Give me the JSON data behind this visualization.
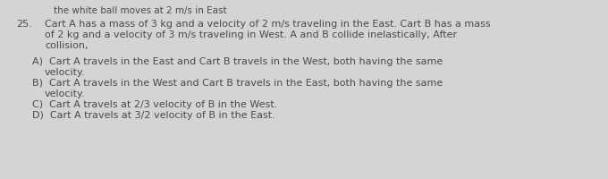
{
  "background_color": "#d4d4d4",
  "header_text": "the white ball moves at 2 m/s in East",
  "question_number": "25.",
  "question_line1": "Cart A has a mass of 3 kg and a velocity of 2 m/s traveling in the East. Cart B has a mass",
  "question_line2": "of 2 kg and a velocity of 3 m/s traveling in West. A and B collide inelastically, After",
  "question_line3": "collision,",
  "option_a1": "A)  Cart A travels in the East and Cart B travels in the West, both having the same",
  "option_a2": "      velocity.",
  "option_b1": "B)  Cart A travels in the West and Cart B travels in the East, both having the same",
  "option_b2": "      velocity.",
  "option_c": "C)  Cart A travels at 2/3 velocity of B in the West.",
  "option_d": "D)  Cart A travels at 3/2 velocity of B in the East.",
  "font_size": 8.0,
  "font_size_header": 7.5,
  "text_color": "#4a4a4a"
}
